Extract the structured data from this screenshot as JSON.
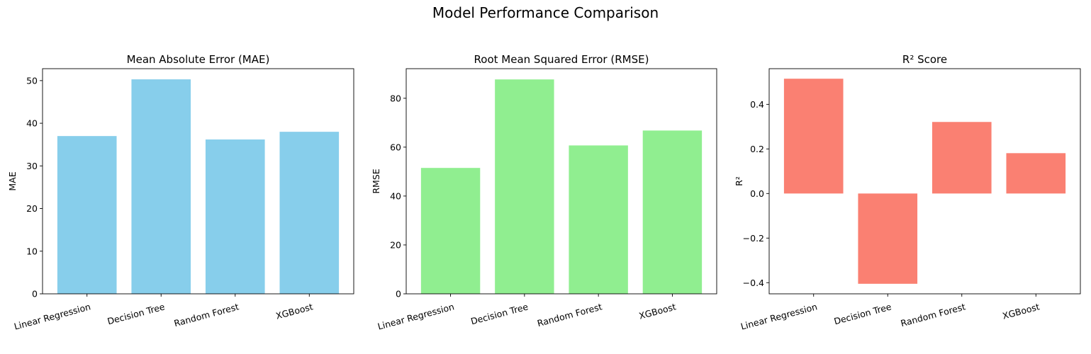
{
  "suptitle": "Model Performance Comparison",
  "chart_data": [
    {
      "type": "bar",
      "title": "Mean Absolute Error (MAE)",
      "xlabel": "",
      "ylabel": "MAE",
      "categories": [
        "Linear Regression",
        "Decision Tree",
        "Random Forest",
        "XGBoost"
      ],
      "values": [
        37.0,
        50.3,
        36.2,
        38.0
      ],
      "ylim": [
        0,
        52.8
      ],
      "yticks": [
        0,
        10,
        20,
        30,
        40,
        50
      ],
      "color": "#87ceeb",
      "grid": false
    },
    {
      "type": "bar",
      "title": "Root Mean Squared Error (RMSE)",
      "xlabel": "",
      "ylabel": "RMSE",
      "categories": [
        "Linear Regression",
        "Decision Tree",
        "Random Forest",
        "XGBoost"
      ],
      "values": [
        51.5,
        87.7,
        60.7,
        66.8
      ],
      "ylim": [
        0,
        92.1
      ],
      "yticks": [
        0,
        20,
        40,
        60,
        80
      ],
      "color": "#90ee90",
      "grid": false
    },
    {
      "type": "bar",
      "title": "R² Score",
      "xlabel": "",
      "ylabel": "R²",
      "categories": [
        "Linear Regression",
        "Decision Tree",
        "Random Forest",
        "XGBoost"
      ],
      "values": [
        0.515,
        -0.405,
        0.321,
        0.181
      ],
      "ylim": [
        -0.45,
        0.56
      ],
      "yticks": [
        -0.4,
        -0.2,
        0.0,
        0.2,
        0.4
      ],
      "yticklabels": [
        "−0.4",
        "−0.2",
        "0.0",
        "0.2",
        "0.4"
      ],
      "color": "#fa8072",
      "grid": false
    }
  ]
}
